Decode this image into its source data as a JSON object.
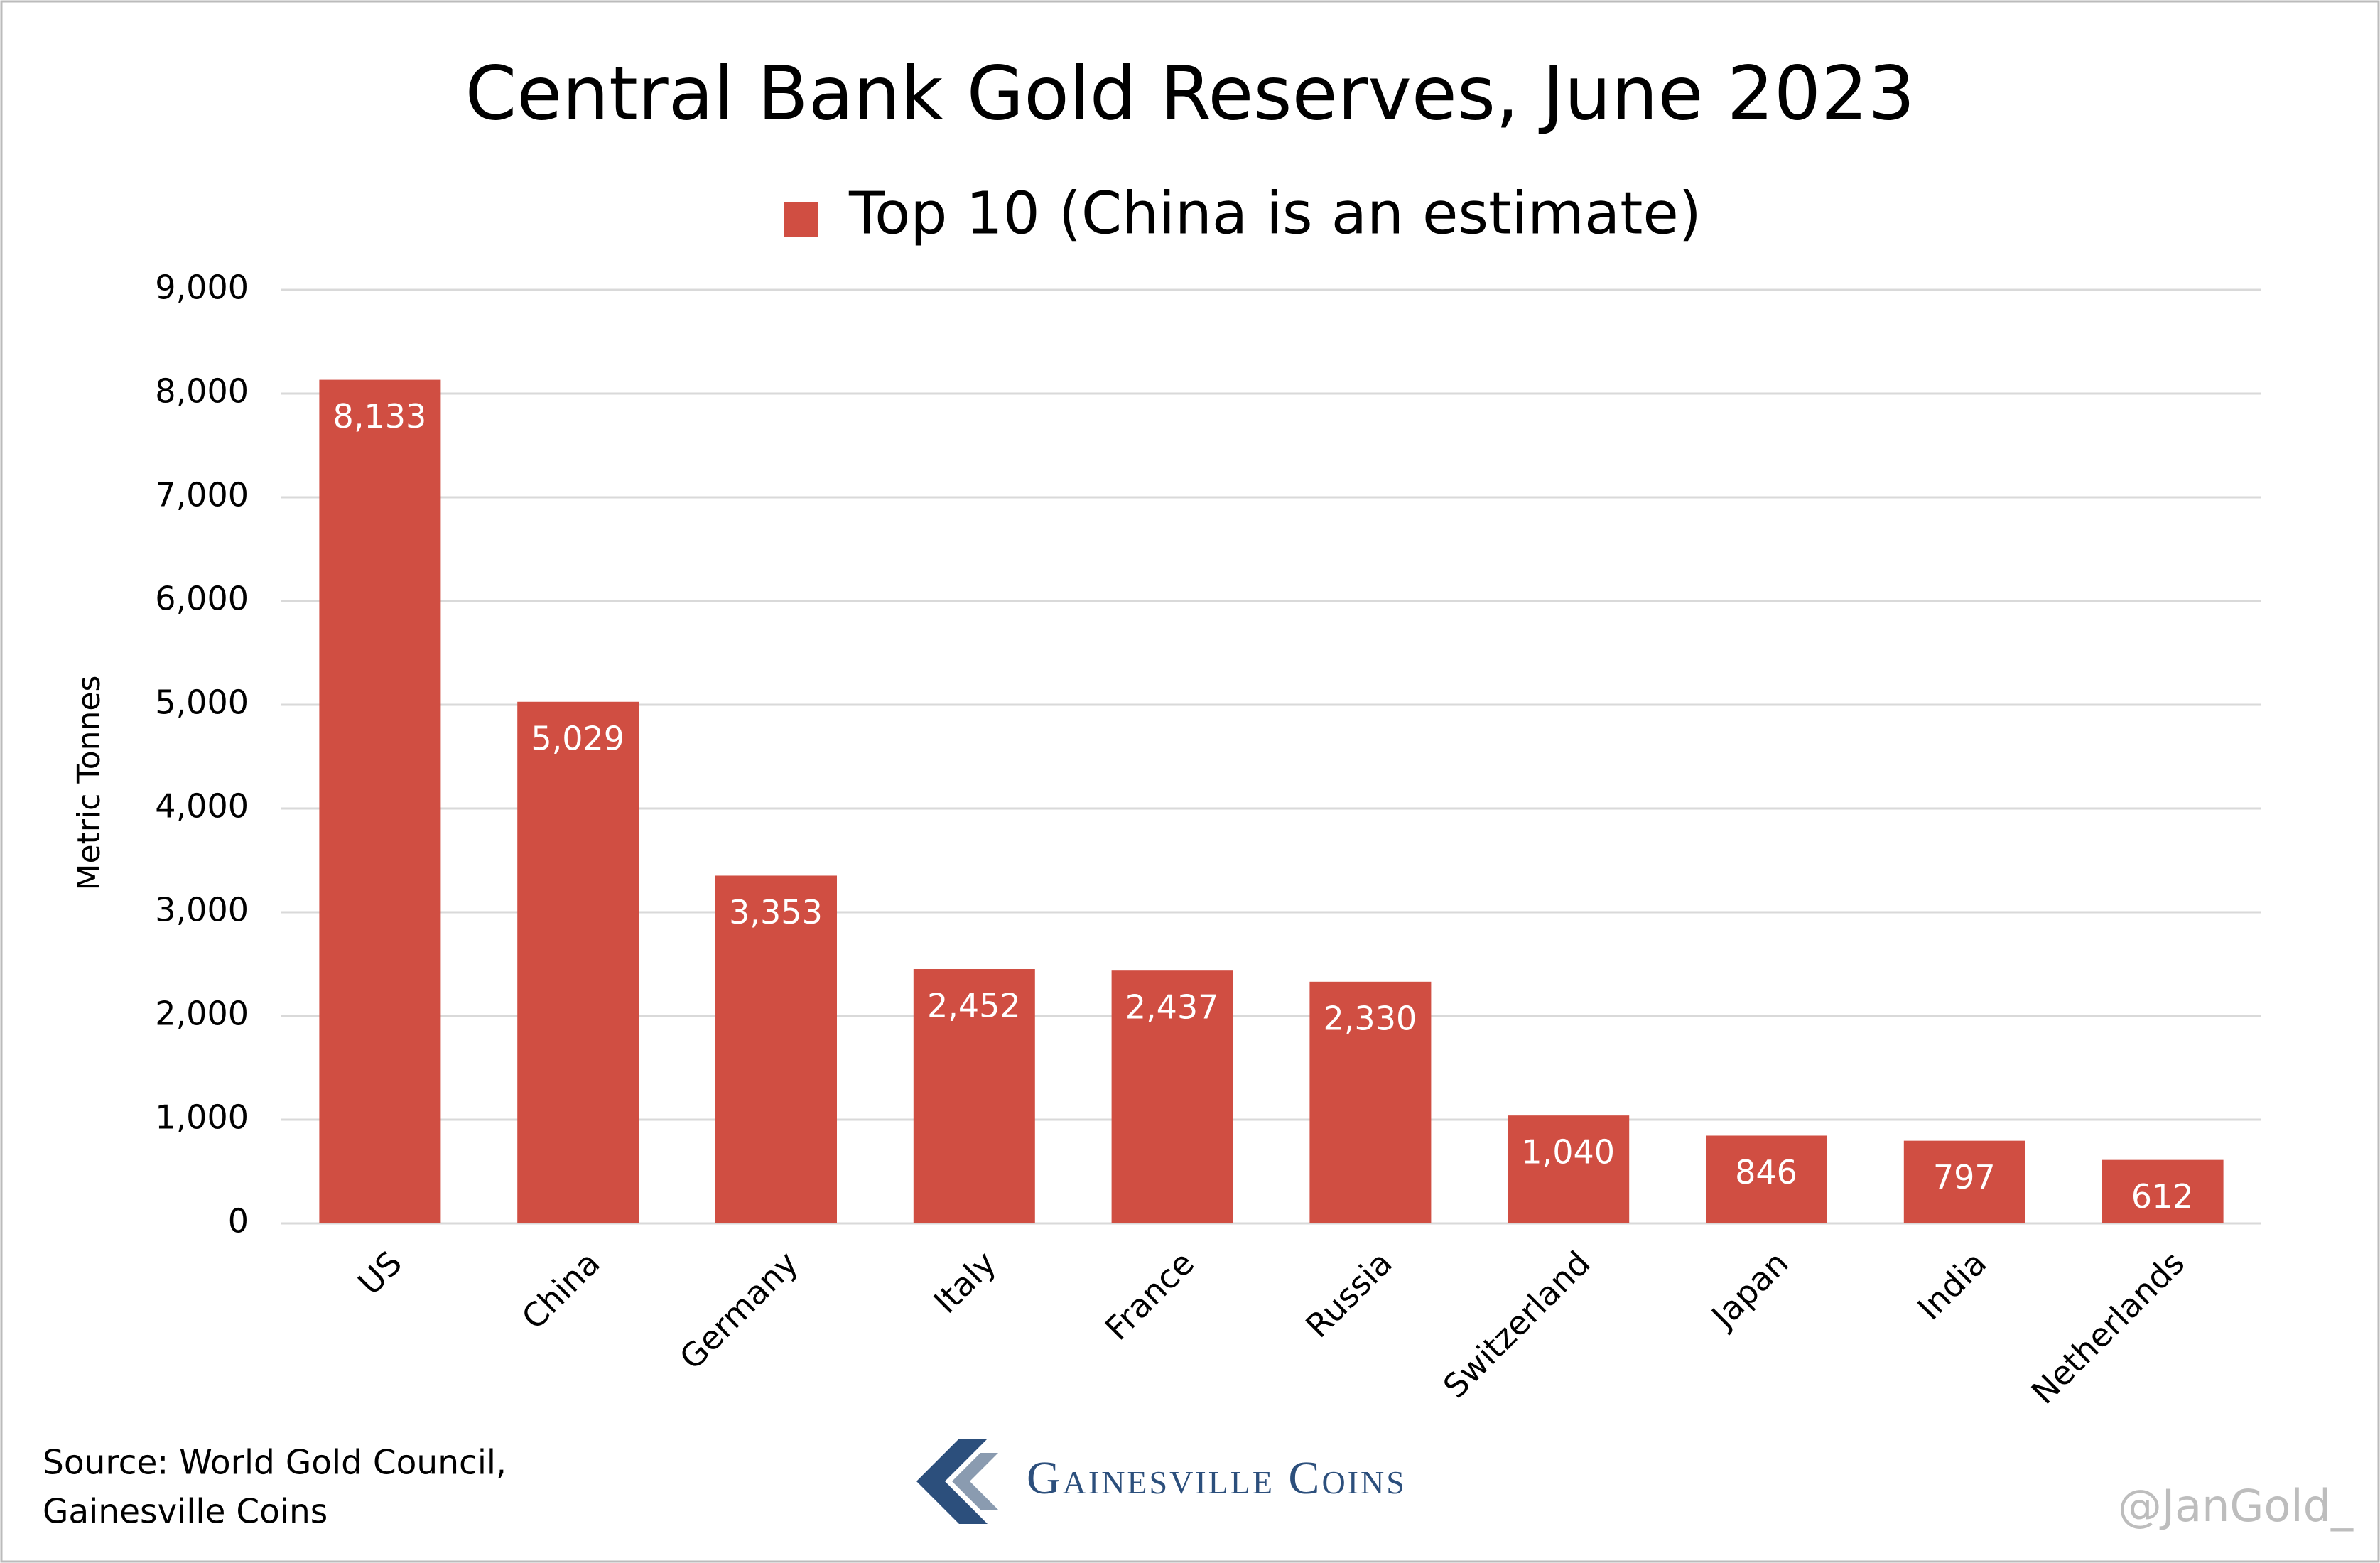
{
  "chart_data": {
    "type": "bar",
    "title": "Central Bank Gold Reserves, June 2023",
    "y_label": "Metric Tonnes",
    "categories": [
      "US",
      "China",
      "Germany",
      "Italy",
      "France",
      "Russia",
      "Switzerland",
      "Japan",
      "India",
      "Netherlands"
    ],
    "series": [
      {
        "name": "Top 10 (China is an estimate)",
        "color": "#d04e42",
        "values": [
          8133,
          5029,
          3353,
          2452,
          2437,
          2330,
          1040,
          846,
          797,
          612
        ],
        "value_labels": [
          "8,133",
          "5,029",
          "3,353",
          "2,452",
          "2,437",
          "2,330",
          "1,040",
          "846",
          "797",
          "612"
        ]
      }
    ],
    "ylim": [
      0,
      9000
    ],
    "yticks": [
      0,
      {
        "value": 1000,
        "label": "1,000"
      },
      {
        "value": 2000,
        "label": "2,000"
      },
      {
        "value": 3000,
        "label": "3,000"
      },
      {
        "value": 4000,
        "label": "4,000"
      },
      {
        "value": 5000,
        "label": "5,000"
      },
      {
        "value": 6000,
        "label": "6,000"
      },
      {
        "value": 7000,
        "label": "7,000"
      },
      {
        "value": 8000,
        "label": "8,000"
      },
      {
        "value": 9000,
        "label": "9,000"
      }
    ],
    "grid": true,
    "legend": "top"
  },
  "footer": {
    "source": [
      "Source: World Gold Council,",
      "Gainesville Coins"
    ],
    "brand": "Gainesville Coins",
    "watermark": "@JanGold_"
  }
}
